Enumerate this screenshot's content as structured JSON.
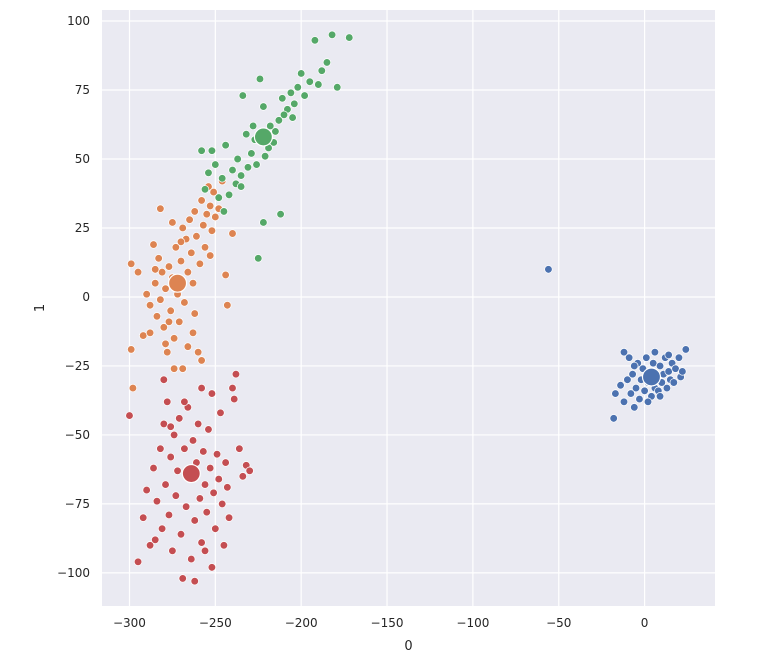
{
  "chart_data": {
    "type": "scatter",
    "title": "",
    "xlabel": "0",
    "ylabel": "1",
    "xlim": [
      -316,
      41
    ],
    "ylim": [
      -112,
      104
    ],
    "xticks": [
      -300,
      -250,
      -200,
      -150,
      -100,
      -50,
      0
    ],
    "yticks": [
      -100,
      -75,
      -50,
      -25,
      0,
      25,
      50,
      75,
      100
    ],
    "grid": true,
    "legend": "none",
    "colors": {
      "background": "#eaeaf2",
      "grid": "#ffffff",
      "blue": "#4c72b0",
      "orange": "#dd8452",
      "green": "#55a868",
      "red": "#c44e52"
    },
    "series": [
      {
        "color_key": "blue",
        "centroid": [
          4,
          -29
        ],
        "points": [
          [
            -56,
            10
          ],
          [
            -18,
            -44
          ],
          [
            -17,
            -35
          ],
          [
            -12,
            -20
          ],
          [
            -12,
            -38
          ],
          [
            -10,
            -30
          ],
          [
            -9,
            -22
          ],
          [
            -8,
            -35
          ],
          [
            -7,
            -28
          ],
          [
            -6,
            -40
          ],
          [
            -5,
            -33
          ],
          [
            -4,
            -24
          ],
          [
            -3,
            -37
          ],
          [
            -2,
            -30
          ],
          [
            -1,
            -26
          ],
          [
            0,
            -34
          ],
          [
            1,
            -22
          ],
          [
            2,
            -31
          ],
          [
            3,
            -27
          ],
          [
            4,
            -36
          ],
          [
            5,
            -24
          ],
          [
            6,
            -33
          ],
          [
            6,
            -20
          ],
          [
            7,
            -29
          ],
          [
            8,
            -34
          ],
          [
            9,
            -25
          ],
          [
            10,
            -31
          ],
          [
            11,
            -28
          ],
          [
            12,
            -22
          ],
          [
            13,
            -33
          ],
          [
            14,
            -27
          ],
          [
            15,
            -30
          ],
          [
            16,
            -24
          ],
          [
            17,
            -31
          ],
          [
            18,
            -26
          ],
          [
            20,
            -22
          ],
          [
            21,
            -29
          ],
          [
            22,
            -27
          ],
          [
            24,
            -19
          ],
          [
            -14,
            -32
          ],
          [
            -6,
            -25
          ],
          [
            2,
            -38
          ],
          [
            9,
            -36
          ],
          [
            14,
            -21
          ]
        ]
      },
      {
        "color_key": "orange",
        "centroid": [
          -272,
          5
        ],
        "points": [
          [
            -299,
            12
          ],
          [
            -299,
            -19
          ],
          [
            -298,
            -33
          ],
          [
            -295,
            9
          ],
          [
            -292,
            -14
          ],
          [
            -290,
            1
          ],
          [
            -288,
            -3
          ],
          [
            -286,
            19
          ],
          [
            -285,
            5
          ],
          [
            -284,
            -7
          ],
          [
            -283,
            14
          ],
          [
            -282,
            -1
          ],
          [
            -281,
            9
          ],
          [
            -280,
            -11
          ],
          [
            -279,
            3
          ],
          [
            -278,
            -20
          ],
          [
            -277,
            11
          ],
          [
            -276,
            -5
          ],
          [
            -275,
            7
          ],
          [
            -274,
            -15
          ],
          [
            -273,
            18
          ],
          [
            -272,
            1
          ],
          [
            -271,
            -9
          ],
          [
            -270,
            13
          ],
          [
            -269,
            25
          ],
          [
            -268,
            -2
          ],
          [
            -267,
            21
          ],
          [
            -266,
            9
          ],
          [
            -265,
            28
          ],
          [
            -264,
            16
          ],
          [
            -263,
            5
          ],
          [
            -262,
            31
          ],
          [
            -261,
            22
          ],
          [
            -260,
            -20
          ],
          [
            -259,
            12
          ],
          [
            -258,
            35
          ],
          [
            -257,
            26
          ],
          [
            -256,
            18
          ],
          [
            -255,
            30
          ],
          [
            -254,
            40
          ],
          [
            -253,
            33
          ],
          [
            -252,
            24
          ],
          [
            -251,
            38
          ],
          [
            -250,
            29
          ],
          [
            -248,
            32
          ],
          [
            -246,
            42
          ],
          [
            -244,
            8
          ],
          [
            -243,
            -3
          ],
          [
            -240,
            23
          ],
          [
            -282,
            32
          ],
          [
            -275,
            27
          ],
          [
            -269,
            -26
          ],
          [
            -263,
            -13
          ],
          [
            -258,
            -23
          ],
          [
            -262,
            -6
          ],
          [
            -274,
            -26
          ],
          [
            -279,
            -17
          ],
          [
            -266,
            -18
          ],
          [
            -253,
            15
          ],
          [
            -270,
            20
          ],
          [
            -277,
            -9
          ],
          [
            -285,
            10
          ],
          [
            -288,
            -13
          ]
        ]
      },
      {
        "color_key": "green",
        "centroid": [
          -222,
          58
        ],
        "points": [
          [
            -172,
            94
          ],
          [
            -179,
            76
          ],
          [
            -182,
            95
          ],
          [
            -185,
            85
          ],
          [
            -188,
            82
          ],
          [
            -190,
            77
          ],
          [
            -192,
            93
          ],
          [
            -195,
            78
          ],
          [
            -198,
            73
          ],
          [
            -200,
            81
          ],
          [
            -202,
            76
          ],
          [
            -204,
            70
          ],
          [
            -206,
            74
          ],
          [
            -208,
            68
          ],
          [
            -210,
            66
          ],
          [
            -211,
            72
          ],
          [
            -213,
            64
          ],
          [
            -215,
            60
          ],
          [
            -216,
            56
          ],
          [
            -218,
            62
          ],
          [
            -219,
            54
          ],
          [
            -221,
            51
          ],
          [
            -222,
            69
          ],
          [
            -224,
            79
          ],
          [
            -226,
            48
          ],
          [
            -227,
            57
          ],
          [
            -229,
            52
          ],
          [
            -231,
            47
          ],
          [
            -232,
            59
          ],
          [
            -234,
            73
          ],
          [
            -235,
            44
          ],
          [
            -237,
            50
          ],
          [
            -238,
            41
          ],
          [
            -240,
            46
          ],
          [
            -242,
            37
          ],
          [
            -244,
            55
          ],
          [
            -246,
            43
          ],
          [
            -248,
            36
          ],
          [
            -250,
            48
          ],
          [
            -252,
            53
          ],
          [
            -254,
            45
          ],
          [
            -256,
            39
          ],
          [
            -258,
            53
          ],
          [
            -212,
            30
          ],
          [
            -222,
            27
          ],
          [
            -225,
            14
          ],
          [
            -235,
            40
          ],
          [
            -245,
            31
          ],
          [
            -228,
            62
          ],
          [
            -205,
            65
          ]
        ]
      },
      {
        "color_key": "red",
        "centroid": [
          -264,
          -64
        ],
        "points": [
          [
            -300,
            -43
          ],
          [
            -295,
            -96
          ],
          [
            -292,
            -80
          ],
          [
            -290,
            -70
          ],
          [
            -288,
            -90
          ],
          [
            -286,
            -62
          ],
          [
            -284,
            -74
          ],
          [
            -282,
            -55
          ],
          [
            -281,
            -84
          ],
          [
            -280,
            -46
          ],
          [
            -279,
            -68
          ],
          [
            -278,
            -38
          ],
          [
            -277,
            -79
          ],
          [
            -276,
            -58
          ],
          [
            -275,
            -92
          ],
          [
            -274,
            -50
          ],
          [
            -273,
            -72
          ],
          [
            -272,
            -63
          ],
          [
            -271,
            -44
          ],
          [
            -270,
            -86
          ],
          [
            -269,
            -102
          ],
          [
            -268,
            -55
          ],
          [
            -267,
            -76
          ],
          [
            -266,
            -40
          ],
          [
            -265,
            -66
          ],
          [
            -264,
            -95
          ],
          [
            -263,
            -52
          ],
          [
            -262,
            -81
          ],
          [
            -261,
            -60
          ],
          [
            -260,
            -46
          ],
          [
            -259,
            -73
          ],
          [
            -258,
            -89
          ],
          [
            -257,
            -56
          ],
          [
            -256,
            -68
          ],
          [
            -255,
            -78
          ],
          [
            -254,
            -48
          ],
          [
            -253,
            -62
          ],
          [
            -252,
            -98
          ],
          [
            -251,
            -71
          ],
          [
            -250,
            -84
          ],
          [
            -249,
            -57
          ],
          [
            -248,
            -66
          ],
          [
            -247,
            -42
          ],
          [
            -246,
            -75
          ],
          [
            -245,
            -90
          ],
          [
            -244,
            -60
          ],
          [
            -243,
            -69
          ],
          [
            -242,
            -80
          ],
          [
            -240,
            -33
          ],
          [
            -239,
            -37
          ],
          [
            -238,
            -28
          ],
          [
            -236,
            -55
          ],
          [
            -234,
            -65
          ],
          [
            -232,
            -61
          ],
          [
            -230,
            -63
          ],
          [
            -252,
            -35
          ],
          [
            -258,
            -33
          ],
          [
            -280,
            -30
          ],
          [
            -262,
            -103
          ],
          [
            -285,
            -88
          ],
          [
            -268,
            -38
          ],
          [
            -276,
            -47
          ],
          [
            -256,
            -92
          ]
        ]
      }
    ]
  }
}
